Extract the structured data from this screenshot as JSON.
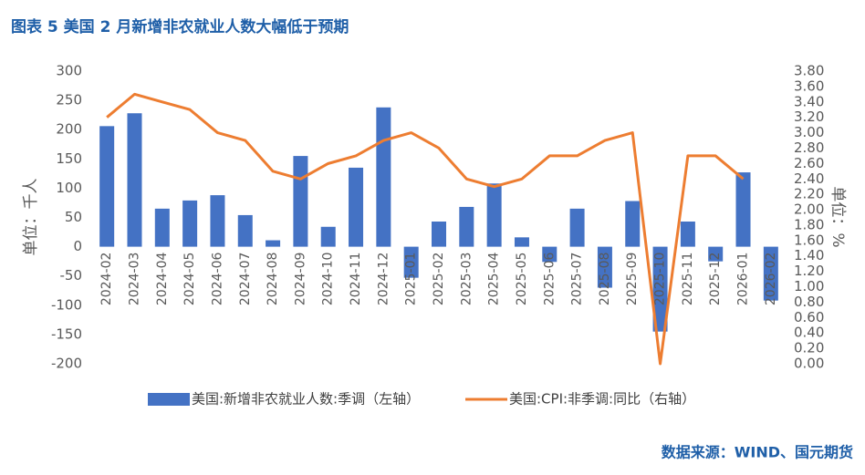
{
  "chart_data": {
    "type": "bar_line",
    "title": "图表 5 美国 2 月新增非农就业人数大幅低于预期",
    "source": "数据来源：WIND、国元期货",
    "y_label": "单位：千人",
    "y2_label": "单位：%",
    "categories": [
      "2024-02",
      "2024-03",
      "2024-04",
      "2024-05",
      "2024-06",
      "2024-07",
      "2024-08",
      "2024-09",
      "2024-10",
      "2024-11",
      "2024-12",
      "2025-01",
      "2025-02",
      "2025-03",
      "2025-04",
      "2025-05",
      "2025-06",
      "2025-07",
      "2025-08",
      "2025-09",
      "2025-10",
      "2025-11",
      "2025-12",
      "2026-01",
      "2026-02"
    ],
    "series": [
      {
        "name": "美国:新增非农就业人数:季调（左轴）",
        "type": "bar",
        "color": "#4472c4",
        "values": [
          206,
          228,
          65,
          79,
          88,
          54,
          11,
          155,
          34,
          135,
          238,
          -53,
          43,
          68,
          108,
          16,
          -26,
          65,
          -70,
          78,
          -145,
          43,
          -25,
          127,
          -92
        ]
      },
      {
        "name": "美国:CPI:非季调:同比（右轴）",
        "type": "line",
        "axis": "y2",
        "color": "#ed7d31",
        "values": [
          3.2,
          3.5,
          3.4,
          3.3,
          3.0,
          2.9,
          2.5,
          2.4,
          2.6,
          2.7,
          2.9,
          3.0,
          2.8,
          2.4,
          2.3,
          2.4,
          2.7,
          2.7,
          2.9,
          3.0,
          0.0,
          2.7,
          2.7,
          2.4,
          null
        ]
      }
    ],
    "ylim": [
      -200,
      300
    ],
    "yticks": [
      -200,
      -150,
      -100,
      -50,
      0,
      50,
      100,
      150,
      200,
      250,
      300
    ],
    "y2lim": [
      0,
      3.8
    ],
    "y2ticks": [
      {
        "value": 0,
        "label": "0.00"
      },
      {
        "value": 0.2,
        "label": "0.20"
      },
      {
        "value": 0.4,
        "label": "0.40"
      },
      {
        "value": 0.6,
        "label": "0.60"
      },
      {
        "value": 0.8,
        "label": "0.80"
      },
      {
        "value": 1.0,
        "label": "1.00"
      },
      {
        "value": 1.2,
        "label": "1.20"
      },
      {
        "value": 1.4,
        "label": "1.40"
      },
      {
        "value": 1.6,
        "label": "1.60"
      },
      {
        "value": 1.8,
        "label": "1.80"
      },
      {
        "value": 2.0,
        "label": "2.00"
      },
      {
        "value": 2.2,
        "label": "2.20"
      },
      {
        "value": 2.4,
        "label": "2.40"
      },
      {
        "value": 2.6,
        "label": "2.60"
      },
      {
        "value": 2.8,
        "label": "2.80"
      },
      {
        "value": 3.0,
        "label": "3.00"
      },
      {
        "value": 3.2,
        "label": "3.20"
      },
      {
        "value": 3.4,
        "label": "3.40"
      },
      {
        "value": 3.6,
        "label": "3.60"
      },
      {
        "value": 3.8,
        "label": "3.80"
      }
    ]
  }
}
